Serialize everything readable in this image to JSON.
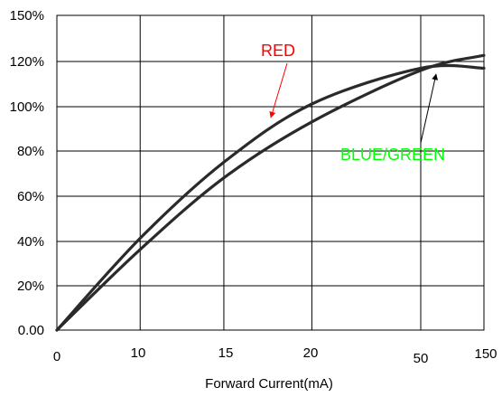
{
  "chart_data": {
    "type": "line",
    "title": "",
    "xlabel": "Forward Current(mA)",
    "ylabel": "",
    "x_tick_labels": [
      "0",
      "10",
      "15",
      "20",
      "50",
      "150"
    ],
    "y_tick_labels": [
      "0.00",
      "20%",
      "40%",
      "60%",
      "80%",
      "100%",
      "120%",
      "150%"
    ],
    "grid": true,
    "series": [
      {
        "name": "RED",
        "color": "#ff0000",
        "x": [
          "0",
          "10",
          "15",
          "20",
          "50",
          "150"
        ],
        "values": [
          0,
          41,
          75,
          101,
          117,
          117
        ]
      },
      {
        "name": "BLUE/GREEN",
        "color": "#00ff00",
        "x": [
          "0",
          "10",
          "15",
          "20",
          "50",
          "150"
        ],
        "values": [
          0,
          36,
          68,
          93,
          116,
          124
        ]
      }
    ]
  }
}
